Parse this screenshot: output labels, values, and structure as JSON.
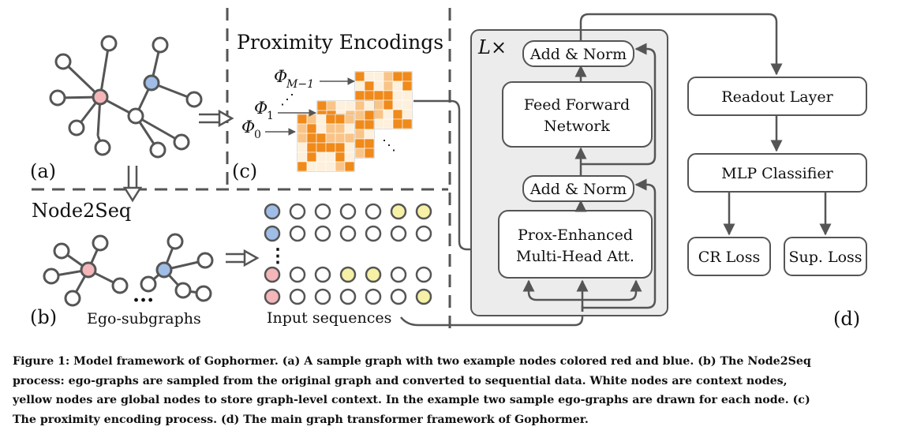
{
  "panels": {
    "a_label": "(a)",
    "b_label": "(b)",
    "c_label": "(c)",
    "d_label": "(d)"
  },
  "panel_c": {
    "title": "Proximity Encodings",
    "phi_m1_base": "Φ",
    "phi_m1_sub": "M−1",
    "phi1_base": "Φ",
    "phi1_sub": "1",
    "phi0_base": "Φ",
    "phi0_sub": "0",
    "vdots": "⋰",
    "ddots": "⋱"
  },
  "panel_b": {
    "title": "Node2Seq",
    "ellipsis": "...",
    "vdots": "⋮",
    "ego_label": "Ego-subgraphs",
    "input_label": "Input sequences"
  },
  "panel_d": {
    "repeat_label": "L×",
    "add_norm_top": "Add & Norm",
    "ffn_line1": "Feed Forward",
    "ffn_line2": "Network",
    "add_norm_bottom": "Add & Norm",
    "attn_line1": "Prox-Enhanced",
    "attn_line2": "Multi-Head Att.",
    "readout": "Readout Layer",
    "mlp": "MLP Classifier",
    "cr_loss": "CR Loss",
    "sup_loss": "Sup. Loss"
  },
  "colors": {
    "red_node": "#f4b6b8",
    "blue_node": "#9fbde6",
    "yellow_node": "#f6f1a6",
    "panel_gray": "#ececec",
    "matrix_dark": "#ef8a1b",
    "matrix_light": "#f9c487",
    "matrix_pale": "#fdf0dc"
  },
  "caption": {
    "line1": "Figure 1: Model framework of Gophormer. (a) A sample graph with two example nodes colored red and blue. (b) The Node2Seq",
    "line2": "process: ego-graphs are sampled from the original graph and converted to sequential data. White nodes are context nodes,",
    "line3": "yellow nodes are global nodes to store graph-level context. In the example two sample ego-graphs are drawn for each node. (c)",
    "line4": "The proximity encoding process. (d) The main graph transformer framework of Gophormer."
  }
}
